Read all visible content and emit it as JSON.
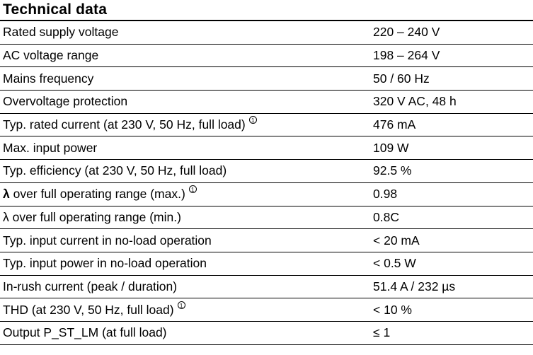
{
  "title": "Technical data",
  "rows": [
    {
      "label": "Rated supply voltage",
      "value": "220 – 240 V"
    },
    {
      "label": "AC voltage range",
      "value": "198 – 264 V"
    },
    {
      "label": "Mains frequency",
      "value": "50 / 60 Hz"
    },
    {
      "label": "Overvoltage protection",
      "value": "320 V AC, 48 h"
    },
    {
      "label": "Typ. rated current (at 230 V, 50 Hz, full load)",
      "value": "476 mA",
      "footnote": "1"
    },
    {
      "label": "Max. input power",
      "value": "109 W"
    },
    {
      "label": "Typ. efficiency (at 230 V, 50 Hz, full load)",
      "value": "92.5 %"
    },
    {
      "label_prefix": "λ",
      "label": " over full operating range (max.)",
      "value": "0.98",
      "footnote": "1"
    },
    {
      "label": "λ over full operating range (min.)",
      "value": "0.8C"
    },
    {
      "label": "Typ. input current in no-load operation",
      "value": "< 20 mA"
    },
    {
      "label": "Typ. input power in no-load operation",
      "value": "< 0.5 W"
    },
    {
      "label": "In-rush current (peak / duration)",
      "value": "51.4 A / 232 µs"
    },
    {
      "label": "THD (at 230 V, 50 Hz, full load)",
      "value": "< 10 %",
      "footnote": "1"
    },
    {
      "label": "Output P_ST_LM (at full load)",
      "value": "≤ 1"
    }
  ]
}
